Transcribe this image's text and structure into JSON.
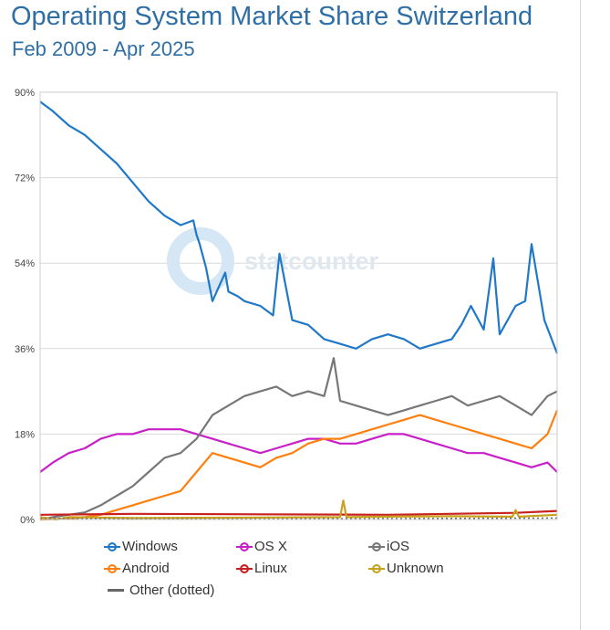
{
  "title": "Operating System Market Share Switzerland",
  "subtitle": "Feb 2009 - Apr 2025",
  "watermark": "statcounter",
  "chart_data": {
    "type": "line",
    "x_range": [
      "2009-02",
      "2025-04"
    ],
    "ylim": [
      0,
      90
    ],
    "y_ticks": [
      "0%",
      "18%",
      "36%",
      "54%",
      "72%",
      "90%"
    ],
    "grid": true,
    "legend_position": "bottom",
    "series": [
      {
        "name": "Windows",
        "color": "#1f78c8",
        "x": [
          2009.1,
          2009.5,
          2010.0,
          2010.5,
          2011.0,
          2011.5,
          2012.0,
          2012.5,
          2013.0,
          2013.5,
          2013.9,
          2014.0,
          2014.1,
          2014.3,
          2014.5,
          2014.9,
          2015.0,
          2015.3,
          2015.5,
          2016.0,
          2016.4,
          2016.6,
          2017.0,
          2017.5,
          2018.0,
          2018.5,
          2019.0,
          2019.5,
          2020.0,
          2020.5,
          2021.0,
          2021.5,
          2022.0,
          2022.3,
          2022.6,
          2023.0,
          2023.3,
          2023.5,
          2024.0,
          2024.3,
          2024.5,
          2024.7,
          2024.9,
          2025.3
        ],
        "y": [
          88,
          86,
          83,
          81,
          78,
          75,
          71,
          67,
          64,
          62,
          63,
          60,
          58,
          53,
          46,
          52,
          48,
          47,
          46,
          45,
          43,
          56,
          42,
          41,
          38,
          37,
          36,
          38,
          39,
          38,
          36,
          37,
          38,
          41,
          45,
          40,
          55,
          39,
          45,
          46,
          58,
          50,
          42,
          35
        ]
      },
      {
        "name": "OS X",
        "color": "#c81fc8",
        "x": [
          2009.1,
          2009.5,
          2010.0,
          2010.5,
          2011.0,
          2011.5,
          2012.0,
          2012.5,
          2013.0,
          2013.5,
          2014.0,
          2014.5,
          2015.0,
          2015.5,
          2016.0,
          2016.5,
          2017.0,
          2017.5,
          2018.0,
          2018.5,
          2019.0,
          2019.5,
          2020.0,
          2020.5,
          2021.0,
          2021.5,
          2022.0,
          2022.5,
          2023.0,
          2023.5,
          2024.0,
          2024.5,
          2025.0,
          2025.3
        ],
        "y": [
          10,
          12,
          14,
          15,
          17,
          18,
          18,
          19,
          19,
          19,
          18,
          17,
          16,
          15,
          14,
          15,
          16,
          17,
          17,
          16,
          16,
          17,
          18,
          18,
          17,
          16,
          15,
          14,
          14,
          13,
          12,
          11,
          12,
          10
        ]
      },
      {
        "name": "iOS",
        "color": "#777777",
        "x": [
          2009.1,
          2009.5,
          2010.0,
          2010.5,
          2011.0,
          2011.5,
          2012.0,
          2012.5,
          2013.0,
          2013.5,
          2014.0,
          2014.5,
          2015.0,
          2015.5,
          2016.0,
          2016.5,
          2017.0,
          2017.5,
          2018.0,
          2018.3,
          2018.5,
          2019.0,
          2019.5,
          2020.0,
          2020.5,
          2021.0,
          2021.5,
          2022.0,
          2022.5,
          2023.0,
          2023.5,
          2024.0,
          2024.5,
          2025.0,
          2025.3
        ],
        "y": [
          0,
          0.5,
          1,
          1.5,
          3,
          5,
          7,
          10,
          13,
          14,
          17,
          22,
          24,
          26,
          27,
          28,
          26,
          27,
          26,
          34,
          25,
          24,
          23,
          22,
          23,
          24,
          25,
          26,
          24,
          25,
          26,
          24,
          22,
          26,
          27
        ]
      },
      {
        "name": "Android",
        "color": "#ff7f0e",
        "x": [
          2009.1,
          2010.0,
          2010.5,
          2011.0,
          2011.5,
          2012.0,
          2012.5,
          2013.0,
          2013.5,
          2014.0,
          2014.5,
          2015.0,
          2015.5,
          2016.0,
          2016.5,
          2017.0,
          2017.5,
          2018.0,
          2018.5,
          2019.0,
          2019.5,
          2020.0,
          2020.5,
          2021.0,
          2021.5,
          2022.0,
          2022.5,
          2023.0,
          2023.5,
          2024.0,
          2024.5,
          2025.0,
          2025.3
        ],
        "y": [
          0,
          0.2,
          0.5,
          1,
          2,
          3,
          4,
          5,
          6,
          10,
          14,
          13,
          12,
          11,
          13,
          14,
          16,
          17,
          17,
          18,
          19,
          20,
          21,
          22,
          21,
          20,
          19,
          18,
          17,
          16,
          15,
          18,
          23
        ]
      },
      {
        "name": "Linux",
        "color": "#c81f1f",
        "x": [
          2009.1,
          2012.0,
          2016.0,
          2020.0,
          2024.0,
          2025.3
        ],
        "y": [
          1,
          1.2,
          1.1,
          1,
          1.4,
          1.8
        ]
      },
      {
        "name": "Unknown",
        "color": "#c8a21f",
        "x": [
          2009.1,
          2009.6,
          2010.0,
          2012.0,
          2016.0,
          2018.5,
          2018.6,
          2018.7,
          2020.0,
          2022.0,
          2023.9,
          2024.0,
          2024.1,
          2025.3
        ],
        "y": [
          0.5,
          0,
          0.5,
          0.3,
          0.4,
          0.5,
          4,
          0.5,
          0.6,
          0.7,
          0.6,
          2,
          0.6,
          1
        ]
      },
      {
        "name": "Other (dotted)",
        "color": "#666666",
        "x": [
          2009.1,
          2015.0,
          2020.0,
          2025.3
        ],
        "y": [
          0.2,
          0.1,
          0.2,
          0.3
        ]
      }
    ]
  }
}
